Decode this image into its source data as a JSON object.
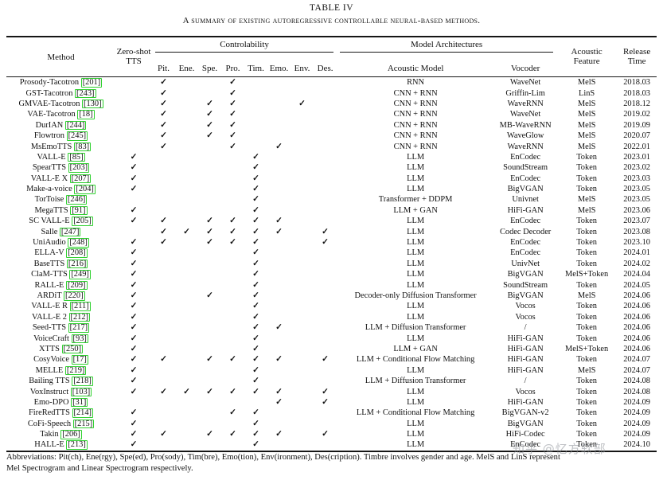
{
  "title": "TABLE IV",
  "subtitle": "A summary of existing autoregressive controllable neural-based methods.",
  "check_glyph": "✓",
  "colors": {
    "citation_box": "#2fd12f",
    "rule": "#161616",
    "watermark_gray": "#8b9096"
  },
  "header": {
    "method": "Method",
    "zero_shot": "Zero-shot\nTTS",
    "controlability": "Controlability",
    "model_architectures": "Model Architectures",
    "control_cols": [
      "Pit.",
      "Ene.",
      "Spe.",
      "Pro.",
      "Tim.",
      "Emo.",
      "Env.",
      "Des."
    ],
    "acoustic_model": "Acoustic Model",
    "vocoder": "Vocoder",
    "acoustic_feature": "Acoustic\nFeature",
    "release_time": "Release\nTime"
  },
  "control_keys": [
    "pit",
    "ene",
    "spe",
    "pro",
    "tim",
    "emo",
    "env",
    "des"
  ],
  "rows": [
    {
      "method": "Prosody-Tacotron",
      "ref": "201",
      "zs": 0,
      "c": [
        1,
        0,
        0,
        1,
        0,
        0,
        0,
        0
      ],
      "am": "RNN",
      "voc": "WaveNet",
      "feat": "MelS",
      "time": "2018.03"
    },
    {
      "method": "GST-Tacotron",
      "ref": "243",
      "zs": 0,
      "c": [
        1,
        0,
        0,
        1,
        0,
        0,
        0,
        0
      ],
      "am": "CNN + RNN",
      "voc": "Griffin-Lim",
      "feat": "LinS",
      "time": "2018.03"
    },
    {
      "method": "GMVAE-Tacotron",
      "ref": "130",
      "zs": 0,
      "c": [
        1,
        0,
        1,
        1,
        0,
        0,
        1,
        0
      ],
      "am": "CNN + RNN",
      "voc": "WaveRNN",
      "feat": "MelS",
      "time": "2018.12"
    },
    {
      "method": "VAE-Tacotron",
      "ref": "18",
      "zs": 0,
      "c": [
        1,
        0,
        1,
        1,
        0,
        0,
        0,
        0
      ],
      "am": "CNN + RNN",
      "voc": "WaveNet",
      "feat": "MelS",
      "time": "2019.02"
    },
    {
      "method": "DurIAN",
      "ref": "244",
      "zs": 0,
      "c": [
        1,
        0,
        1,
        1,
        0,
        0,
        0,
        0
      ],
      "am": "CNN + RNN",
      "voc": "MB-WaveRNN",
      "feat": "MelS",
      "time": "2019.09"
    },
    {
      "method": "Flowtron",
      "ref": "245",
      "zs": 0,
      "c": [
        1,
        0,
        1,
        1,
        0,
        0,
        0,
        0
      ],
      "am": "CNN + RNN",
      "voc": "WaveGlow",
      "feat": "MelS",
      "time": "2020.07"
    },
    {
      "method": "MsEmoTTS",
      "ref": "83",
      "zs": 0,
      "c": [
        1,
        0,
        0,
        1,
        0,
        1,
        0,
        0
      ],
      "am": "CNN + RNN",
      "voc": "WaveRNN",
      "feat": "MelS",
      "time": "2022.01"
    },
    {
      "method": "VALL-E",
      "ref": "85",
      "zs": 1,
      "c": [
        0,
        0,
        0,
        0,
        1,
        0,
        0,
        0
      ],
      "am": "LLM",
      "voc": "EnCodec",
      "feat": "Token",
      "time": "2023.01"
    },
    {
      "method": "SpearTTS",
      "ref": "203",
      "zs": 1,
      "c": [
        0,
        0,
        0,
        0,
        1,
        0,
        0,
        0
      ],
      "am": "LLM",
      "voc": "SoundStream",
      "feat": "Token",
      "time": "2023.02"
    },
    {
      "method": "VALL-E X",
      "ref": "207",
      "zs": 1,
      "c": [
        0,
        0,
        0,
        0,
        1,
        0,
        0,
        0
      ],
      "am": "LLM",
      "voc": "EnCodec",
      "feat": "Token",
      "time": "2023.03"
    },
    {
      "method": "Make-a-voice",
      "ref": "204",
      "zs": 1,
      "c": [
        0,
        0,
        0,
        0,
        1,
        0,
        0,
        0
      ],
      "am": "LLM",
      "voc": "BigVGAN",
      "feat": "Token",
      "time": "2023.05"
    },
    {
      "method": "TorToise",
      "ref": "246",
      "zs": 0,
      "c": [
        0,
        0,
        0,
        0,
        1,
        0,
        0,
        0
      ],
      "am": "Transformer + DDPM",
      "voc": "Univnet",
      "feat": "MelS",
      "time": "2023.05"
    },
    {
      "method": "MegaTTS",
      "ref": "91",
      "zs": 1,
      "c": [
        0,
        0,
        0,
        0,
        1,
        0,
        0,
        0
      ],
      "am": "LLM + GAN",
      "voc": "HiFi-GAN",
      "feat": "MelS",
      "time": "2023.06"
    },
    {
      "method": "SC VALL-E",
      "ref": "205",
      "zs": 1,
      "c": [
        1,
        0,
        1,
        1,
        1,
        1,
        0,
        0
      ],
      "am": "LLM",
      "voc": "EnCodec",
      "feat": "Token",
      "time": "2023.07"
    },
    {
      "method": "Salle",
      "ref": "247",
      "zs": 0,
      "c": [
        1,
        1,
        1,
        1,
        1,
        1,
        0,
        1
      ],
      "am": "LLM",
      "voc": "Codec Decoder",
      "feat": "Token",
      "time": "2023.08"
    },
    {
      "method": "UniAudio",
      "ref": "248",
      "zs": 1,
      "c": [
        1,
        0,
        1,
        1,
        1,
        0,
        0,
        1
      ],
      "am": "LLM",
      "voc": "EnCodec",
      "feat": "Token",
      "time": "2023.10"
    },
    {
      "method": "ELLA-V",
      "ref": "208",
      "zs": 1,
      "c": [
        0,
        0,
        0,
        0,
        1,
        0,
        0,
        0
      ],
      "am": "LLM",
      "voc": "EnCodec",
      "feat": "Token",
      "time": "2024.01"
    },
    {
      "method": "BaseTTS",
      "ref": "216",
      "zs": 1,
      "c": [
        0,
        0,
        0,
        0,
        1,
        0,
        0,
        0
      ],
      "am": "LLM",
      "voc": "UnivNet",
      "feat": "Token",
      "time": "2024.02"
    },
    {
      "method": "ClaM-TTS",
      "ref": "249",
      "zs": 1,
      "c": [
        0,
        0,
        0,
        0,
        1,
        0,
        0,
        0
      ],
      "am": "LLM",
      "voc": "BigVGAN",
      "feat": "MelS+Token",
      "time": "2024.04"
    },
    {
      "method": "RALL-E",
      "ref": "209",
      "zs": 1,
      "c": [
        0,
        0,
        0,
        0,
        1,
        0,
        0,
        0
      ],
      "am": "LLM",
      "voc": "SoundStream",
      "feat": "Token",
      "time": "2024.05"
    },
    {
      "method": "ARDiT",
      "ref": "220",
      "zs": 1,
      "c": [
        0,
        0,
        1,
        0,
        1,
        0,
        0,
        0
      ],
      "am": "Decoder-only Diffusion Transformer",
      "voc": "BigVGAN",
      "feat": "MelS",
      "time": "2024.06"
    },
    {
      "method": "VALL-E R",
      "ref": "211",
      "zs": 1,
      "c": [
        0,
        0,
        0,
        0,
        1,
        0,
        0,
        0
      ],
      "am": "LLM",
      "voc": "Vocos",
      "feat": "Token",
      "time": "2024.06"
    },
    {
      "method": "VALL-E 2",
      "ref": "212",
      "zs": 1,
      "c": [
        0,
        0,
        0,
        0,
        1,
        0,
        0,
        0
      ],
      "am": "LLM",
      "voc": "Vocos",
      "feat": "Token",
      "time": "2024.06"
    },
    {
      "method": "Seed-TTS",
      "ref": "217",
      "zs": 1,
      "c": [
        0,
        0,
        0,
        0,
        1,
        1,
        0,
        0
      ],
      "am": "LLM + Diffusion Transformer",
      "voc": "/",
      "feat": "Token",
      "time": "2024.06"
    },
    {
      "method": "VoiceCraft",
      "ref": "93",
      "zs": 1,
      "c": [
        0,
        0,
        0,
        0,
        1,
        0,
        0,
        0
      ],
      "am": "LLM",
      "voc": "HiFi-GAN",
      "feat": "Token",
      "time": "2024.06"
    },
    {
      "method": "XTTS",
      "ref": "250",
      "zs": 1,
      "c": [
        0,
        0,
        0,
        0,
        1,
        0,
        0,
        0
      ],
      "am": "LLM + GAN",
      "voc": "HiFi-GAN",
      "feat": "MelS+Token",
      "time": "2024.06"
    },
    {
      "method": "CosyVoice",
      "ref": "17",
      "zs": 1,
      "c": [
        1,
        0,
        1,
        1,
        1,
        1,
        0,
        1
      ],
      "am": "LLM + Conditional Flow Matching",
      "voc": "HiFi-GAN",
      "feat": "Token",
      "time": "2024.07"
    },
    {
      "method": "MELLE",
      "ref": "219",
      "zs": 1,
      "c": [
        0,
        0,
        0,
        0,
        1,
        0,
        0,
        0
      ],
      "am": "LLM",
      "voc": "HiFi-GAN",
      "feat": "MelS",
      "time": "2024.07"
    },
    {
      "method": "Bailing TTS",
      "ref": "218",
      "zs": 1,
      "c": [
        0,
        0,
        0,
        0,
        1,
        0,
        0,
        0
      ],
      "am": "LLM + Diffusion Transformer",
      "voc": "/",
      "feat": "Token",
      "time": "2024.08"
    },
    {
      "method": "VoxInstruct",
      "ref": "103",
      "zs": 1,
      "c": [
        1,
        1,
        1,
        1,
        1,
        1,
        0,
        1
      ],
      "am": "LLM",
      "voc": "Vocos",
      "feat": "Token",
      "time": "2024.08"
    },
    {
      "method": "Emo-DPO",
      "ref": "31",
      "zs": 0,
      "c": [
        0,
        0,
        0,
        0,
        0,
        1,
        0,
        1
      ],
      "am": "LLM",
      "voc": "HiFi-GAN",
      "feat": "Token",
      "time": "2024.09"
    },
    {
      "method": "FireRedTTS",
      "ref": "214",
      "zs": 1,
      "c": [
        0,
        0,
        0,
        1,
        1,
        0,
        0,
        0
      ],
      "am": "LLM + Conditional Flow Matching",
      "voc": "BigVGAN-v2",
      "feat": "Token",
      "time": "2024.09"
    },
    {
      "method": "CoFi-Speech",
      "ref": "215",
      "zs": 1,
      "c": [
        0,
        0,
        0,
        0,
        1,
        0,
        0,
        0
      ],
      "am": "LLM",
      "voc": "BigVGAN",
      "feat": "Token",
      "time": "2024.09"
    },
    {
      "method": "Takin",
      "ref": "206",
      "zs": 1,
      "c": [
        1,
        0,
        1,
        1,
        1,
        1,
        0,
        1
      ],
      "am": "LLM",
      "voc": "HiFi-Codec",
      "feat": "Token",
      "time": "2024.09"
    },
    {
      "method": "HALL-E",
      "ref": "213",
      "zs": 1,
      "c": [
        0,
        0,
        0,
        0,
        1,
        0,
        0,
        0
      ],
      "am": "LLM",
      "voc": "EnCodec",
      "feat": "Token",
      "time": "2024.10"
    }
  ],
  "footnote_line1": "Abbreviations: Pit(ch), Ene(rgy), Spe(ed), Pro(sody), Tim(bre), Emo(tion), Env(ironment), Des(cription). Timbre involves gender and age. MelS and LinS represent",
  "footnote_line2": "Mel Spectrogram and Linear Spectrogram respectively.",
  "watermark": "知乎 @忆方软部"
}
